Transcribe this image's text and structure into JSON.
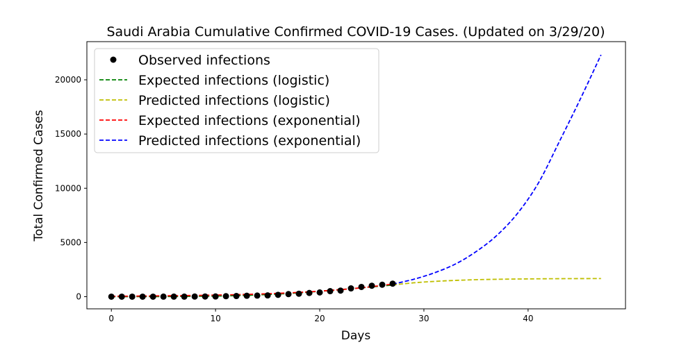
{
  "chart_data": {
    "type": "line",
    "title": "Saudi Arabia Cumulative Confirmed COVID-19 Cases. (Updated on 3/29/20)",
    "xlabel": "Days",
    "ylabel": "Total Confirmed Cases",
    "xlim": [
      -2.35,
      49.35
    ],
    "ylim": [
      -1120,
      23520
    ],
    "x_ticks": [
      0,
      10,
      20,
      30,
      40
    ],
    "y_ticks": [
      0,
      5000,
      10000,
      15000,
      20000
    ],
    "grid": false,
    "legend_position": "top-left",
    "observed": {
      "name": "Observed infections",
      "color": "#000000",
      "x": [
        0,
        1,
        2,
        3,
        4,
        5,
        6,
        7,
        8,
        9,
        10,
        11,
        12,
        13,
        14,
        15,
        16,
        17,
        18,
        19,
        20,
        21,
        22,
        23,
        24,
        25,
        26,
        27
      ],
      "y": [
        1,
        1,
        1,
        1,
        1,
        5,
        5,
        5,
        15,
        20,
        21,
        45,
        62,
        86,
        103,
        118,
        171,
        238,
        274,
        344,
        392,
        511,
        562,
        767,
        900,
        1012,
        1104,
        1203
      ]
    },
    "series": [
      {
        "name": "Expected infections (logistic)",
        "color": "#008000",
        "x": [
          0,
          3,
          6,
          9,
          12,
          15,
          18,
          21,
          24,
          27
        ],
        "y": [
          3,
          8,
          19,
          45,
          99,
          200,
          358,
          573,
          820,
          1080
        ]
      },
      {
        "name": "Predicted infections (logistic)",
        "color": "#bfbf00",
        "x": [
          27,
          29,
          31,
          33,
          35,
          37,
          40,
          43,
          45,
          47
        ],
        "y": [
          1080,
          1278,
          1410,
          1500,
          1568,
          1605,
          1640,
          1660,
          1668,
          1672
        ]
      },
      {
        "name": "Expected infections (exponential)",
        "color": "#ff0000",
        "x": [
          0,
          3,
          6,
          9,
          12,
          15,
          18,
          21,
          24,
          27
        ],
        "y": [
          40,
          60,
          90,
          132,
          190,
          270,
          400,
          580,
          820,
          1160
        ]
      },
      {
        "name": "Predicted infections (exponential)",
        "color": "#0000ff",
        "x": [
          27,
          29,
          31,
          33,
          35,
          37,
          39,
          41,
          43,
          45,
          47
        ],
        "y": [
          1160,
          1600,
          2200,
          3000,
          4150,
          5650,
          7700,
          10500,
          14300,
          18200,
          22300
        ]
      }
    ]
  }
}
